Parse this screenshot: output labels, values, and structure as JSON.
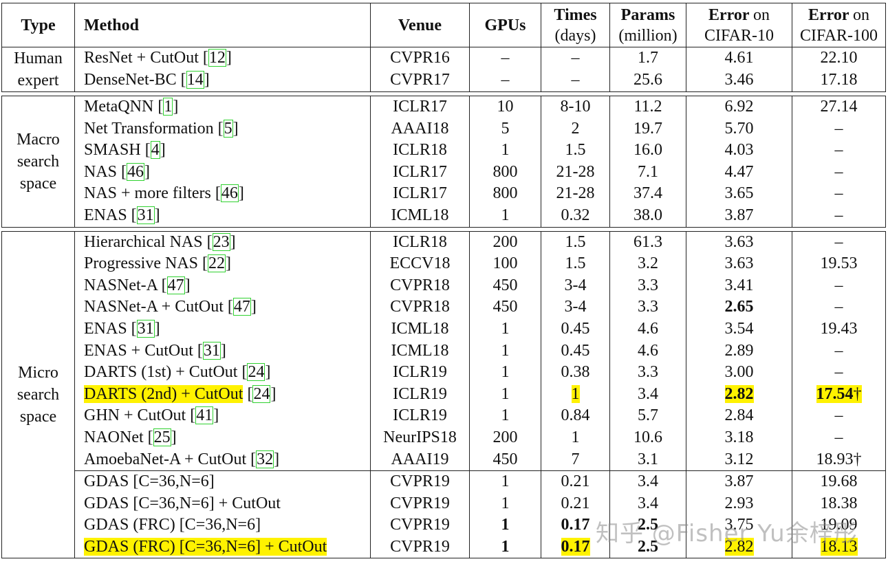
{
  "headers": {
    "type": "Type",
    "method": "Method",
    "venue": "Venue",
    "gpus": "GPUs",
    "times_1": "Times",
    "times_2": "(days)",
    "params_1": "Params",
    "params_2": "(million)",
    "err10_1": "Error",
    "err10_1b": "on",
    "err10_2": "CIFAR-10",
    "err100_1": "Error",
    "err100_1b": "on",
    "err100_2": "CIFAR-100"
  },
  "groups": [
    {
      "type_lines": [
        "Human",
        "expert"
      ],
      "rows": [
        {
          "method": "ResNet + CutOut ",
          "ref": "12",
          "venue": "CVPR16",
          "gpus": "–",
          "times": "–",
          "params": "1.7",
          "err10": "4.61",
          "err100": "22.10"
        },
        {
          "method": "DenseNet-BC ",
          "ref": "14",
          "venue": "CVPR17",
          "gpus": "–",
          "times": "–",
          "params": "25.6",
          "err10": "3.46",
          "err100": "17.18"
        }
      ]
    },
    {
      "type_lines": [
        "Macro",
        "search",
        "space"
      ],
      "rows": [
        {
          "method": "MetaQNN ",
          "ref": "1",
          "venue": "ICLR17",
          "gpus": "10",
          "times": "8-10",
          "params": "11.2",
          "err10": "6.92",
          "err100": "27.14"
        },
        {
          "method": "Net Transformation ",
          "ref": "5",
          "venue": "AAAI18",
          "gpus": "5",
          "times": "2",
          "params": "19.7",
          "err10": "5.70",
          "err100": "–"
        },
        {
          "method": "SMASH ",
          "ref": "4",
          "venue": "ICLR18",
          "gpus": "1",
          "times": "1.5",
          "params": "16.0",
          "err10": "4.03",
          "err100": "–"
        },
        {
          "method": "NAS ",
          "ref": "46",
          "venue": "ICLR17",
          "gpus": "800",
          "times": "21-28",
          "params": "7.1",
          "err10": "4.47",
          "err100": "–"
        },
        {
          "method": "NAS + more filters ",
          "ref": "46",
          "venue": "ICLR17",
          "gpus": "800",
          "times": "21-28",
          "params": "37.4",
          "err10": "3.65",
          "err100": "–"
        },
        {
          "method": "ENAS ",
          "ref": "31",
          "venue": "ICML18",
          "gpus": "1",
          "times": "0.32",
          "params": "38.0",
          "err10": "3.87",
          "err100": "–"
        }
      ]
    },
    {
      "type_lines": [
        "Micro",
        "search",
        "space"
      ],
      "rows": [
        {
          "method": "Hierarchical NAS ",
          "ref": "23",
          "venue": "ICLR18",
          "gpus": "200",
          "times": "1.5",
          "params": "61.3",
          "err10": "3.63",
          "err100": "–"
        },
        {
          "method": "Progressive NAS ",
          "ref": "22",
          "venue": "ECCV18",
          "gpus": "100",
          "times": "1.5",
          "params": "3.2",
          "err10": "3.63",
          "err100": "19.53"
        },
        {
          "method": "NASNet-A ",
          "ref": "47",
          "venue": "CVPR18",
          "gpus": "450",
          "times": "3-4",
          "params": "3.3",
          "err10": "3.41",
          "err100": "–"
        },
        {
          "method": "NASNet-A + CutOut ",
          "ref": "47",
          "venue": "CVPR18",
          "gpus": "450",
          "times": "3-4",
          "params": "3.3",
          "err10": "2.65",
          "err100": "–"
        },
        {
          "method": "ENAS ",
          "ref": "31",
          "venue": "ICML18",
          "gpus": "1",
          "times": "0.45",
          "params": "4.6",
          "err10": "3.54",
          "err100": "19.43"
        },
        {
          "method": "ENAS + CutOut ",
          "ref": "31",
          "venue": "ICML18",
          "gpus": "1",
          "times": "0.45",
          "params": "4.6",
          "err10": "2.89",
          "err100": "–"
        },
        {
          "method": "DARTS (1st) + CutOut ",
          "ref": "24",
          "venue": "ICLR19",
          "gpus": "1",
          "times": "0.38",
          "params": "3.3",
          "err10": "3.00",
          "err100": "–"
        },
        {
          "method": "DARTS (2nd) + CutOut",
          "ref": "24",
          "venue": "ICLR19",
          "gpus": "1",
          "times": "1",
          "params": "3.4",
          "err10": "2.82",
          "err100": "17.54",
          "err100_suffix": "†"
        },
        {
          "method": "GHN + CutOut ",
          "ref": "41",
          "venue": "ICLR19",
          "gpus": "1",
          "times": "0.84",
          "params": "5.7",
          "err10": "2.84",
          "err100": "–"
        },
        {
          "method": "NAONet ",
          "ref": "25",
          "venue": "NeurIPS18",
          "gpus": "200",
          "times": "1",
          "params": "10.6",
          "err10": "3.18",
          "err100": "–"
        },
        {
          "method": "AmoebaNet-A + CutOut ",
          "ref": "32",
          "venue": "AAAI19",
          "gpus": "450",
          "times": "7",
          "params": "3.1",
          "err10": "3.12",
          "err100": "18.93†"
        }
      ]
    },
    {
      "rows": [
        {
          "method": "GDAS [C=36,N=6]",
          "venue": "CVPR19",
          "gpus": "1",
          "times": "0.21",
          "params": "3.4",
          "err10": "3.87",
          "err100": "19.68"
        },
        {
          "method": "GDAS [C=36,N=6] + CutOut",
          "venue": "CVPR19",
          "gpus": "1",
          "times": "0.21",
          "params": "3.4",
          "err10": "2.93",
          "err100": "18.38"
        },
        {
          "method": "GDAS (FRC) [C=36,N=6]",
          "venue": "CVPR19",
          "gpus": "1",
          "times": "0.17",
          "params": "2.5",
          "err10": "3.75",
          "err100": "19.09"
        },
        {
          "method": "GDAS (FRC) [C=36,N=6] + CutOut",
          "venue": "CVPR19",
          "gpus": "1",
          "times": "0.17",
          "params": "2.5",
          "err10": "2.82",
          "err100": "18.13"
        }
      ]
    }
  ],
  "watermark": "知乎 @Fisher Yu余梓彤",
  "colors": {
    "highlight": "#fff200",
    "ref_box": "#2fd12f"
  }
}
